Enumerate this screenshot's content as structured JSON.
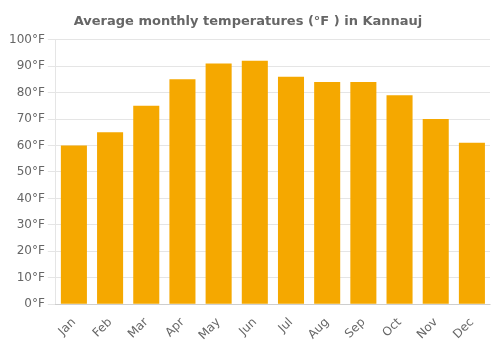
{
  "chart_data": {
    "type": "bar",
    "title": "Average monthly temperatures (°F ) in Kannauj",
    "categories": [
      "Jan",
      "Feb",
      "Mar",
      "Apr",
      "May",
      "Jun",
      "Jul",
      "Aug",
      "Sep",
      "Oct",
      "Nov",
      "Dec"
    ],
    "values": [
      60,
      65,
      75,
      85,
      91,
      92,
      86,
      84,
      84,
      79,
      70,
      61
    ],
    "color": "#F5A800",
    "ylim": [
      0,
      100
    ],
    "yticks": [
      {
        "value": 0,
        "label": "0°F"
      },
      {
        "value": 10,
        "label": "10°F"
      },
      {
        "value": 20,
        "label": "20°F"
      },
      {
        "value": 30,
        "label": "30°F"
      },
      {
        "value": 40,
        "label": "40°F"
      },
      {
        "value": 50,
        "label": "50°F"
      },
      {
        "value": 60,
        "label": "60°F"
      },
      {
        "value": 70,
        "label": "70°F"
      },
      {
        "value": 80,
        "label": "80°F"
      },
      {
        "value": 90,
        "label": "90°F"
      },
      {
        "value": 100,
        "label": "100°F"
      }
    ],
    "grid": true
  }
}
